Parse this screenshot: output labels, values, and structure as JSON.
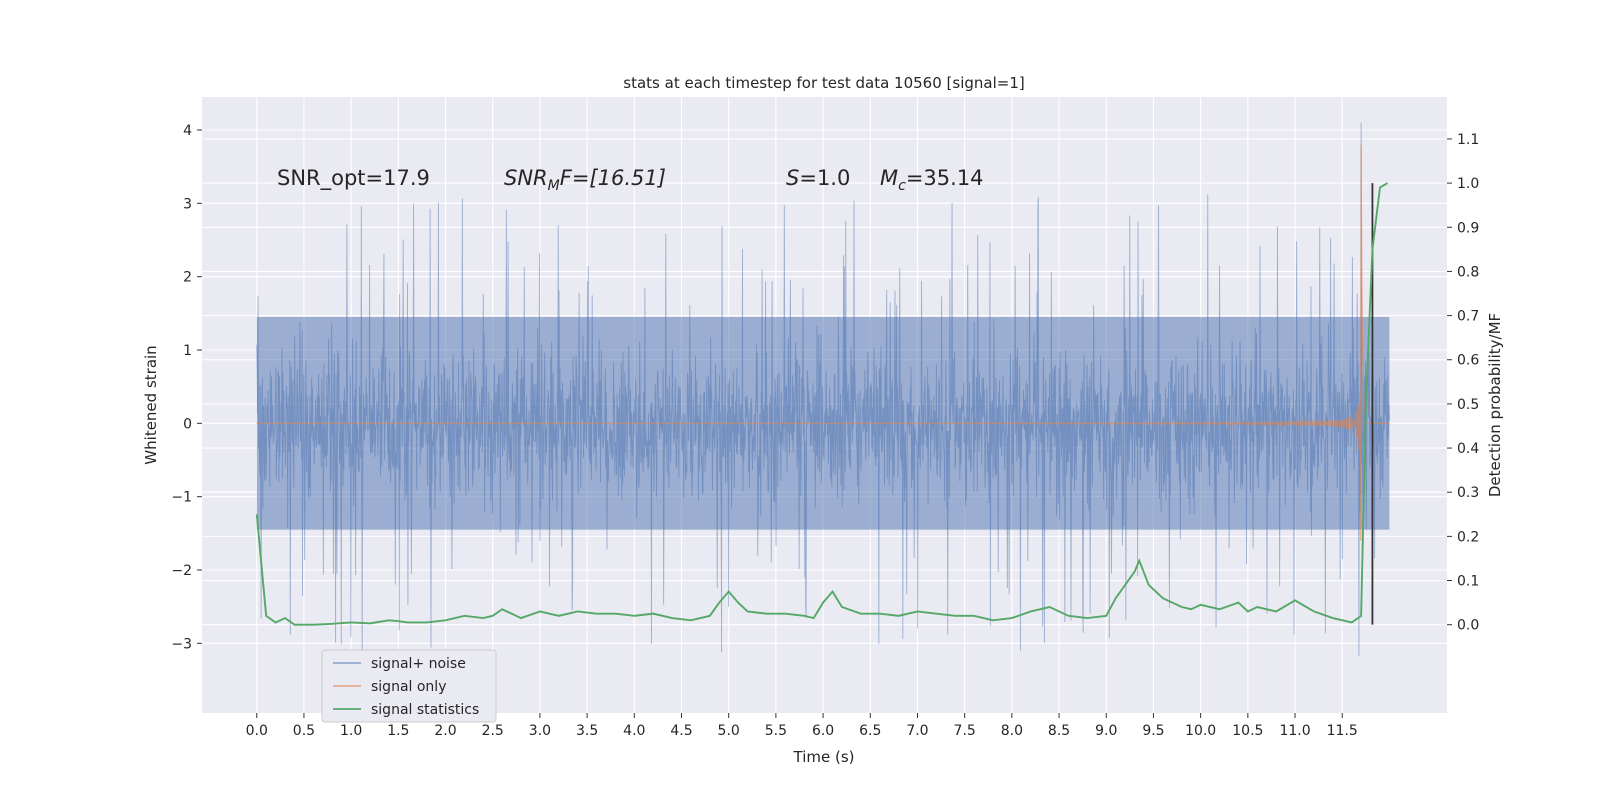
{
  "chart_data": {
    "type": "line",
    "title": "stats at each timestep for test data 10560 [signal=1]",
    "xlabel": "Time (s)",
    "ylabel_left": "Whitened strain",
    "ylabel_right": "Detection probability/MF",
    "xlim": [
      -0.58,
      12.61
    ],
    "ylim_left": [
      -3.95,
      4.45
    ],
    "ylim_right": [
      -0.2,
      1.195
    ],
    "x_ticks": [
      "0.0",
      "0.5",
      "1.0",
      "1.5",
      "2.0",
      "2.5",
      "3.0",
      "3.5",
      "4.0",
      "4.5",
      "5.0",
      "5.5",
      "6.0",
      "6.5",
      "7.0",
      "7.5",
      "8.0",
      "8.5",
      "9.0",
      "9.5",
      "10.0",
      "10.5",
      "11.0",
      "11.5"
    ],
    "y_ticks_left": [
      "−3",
      "−2",
      "−1",
      "0",
      "1",
      "2",
      "3",
      "4"
    ],
    "y_ticks_right": [
      "0.0",
      "0.1",
      "0.2",
      "0.3",
      "0.4",
      "0.5",
      "0.6",
      "0.7",
      "0.8",
      "0.9",
      "1.0",
      "1.1"
    ],
    "annotations": {
      "snr_opt": "SNR_opt=17.9",
      "snr_mf_sym": "SNR",
      "snr_mf_sub": "M",
      "snr_mf_rest": "F=[16.51]",
      "s_sym": "S",
      "s_val": "=1.0",
      "mc_sym": "M",
      "mc_sub": "c",
      "mc_val": "=35.14"
    },
    "legend": {
      "position": "lower-left",
      "entries": [
        "signal+ noise",
        "signal only",
        "signal statistics"
      ]
    },
    "series": [
      {
        "name": "signal+ noise",
        "axis": "left",
        "color": "#4c72b0",
        "alpha": 0.5,
        "x_range": [
          0.0,
          12.0
        ],
        "band": 1.45,
        "noise_std": 0.9,
        "spike_max": 4.1
      },
      {
        "name": "signal only",
        "axis": "left",
        "color": "#dd8452",
        "alpha": 0.6,
        "x_range": [
          0.0,
          12.0
        ],
        "chirp_merger_t": 11.7,
        "peak": 3.8
      },
      {
        "name": "signal statistics",
        "axis": "right",
        "color": "#55a868",
        "x": [
          0.0,
          0.1,
          0.2,
          0.3,
          0.4,
          0.5,
          0.6,
          0.8,
          1.0,
          1.2,
          1.4,
          1.5,
          1.6,
          1.8,
          2.0,
          2.2,
          2.4,
          2.5,
          2.6,
          2.8,
          3.0,
          3.2,
          3.4,
          3.6,
          3.8,
          4.0,
          4.2,
          4.4,
          4.6,
          4.8,
          4.9,
          5.0,
          5.1,
          5.2,
          5.4,
          5.6,
          5.8,
          5.9,
          6.0,
          6.1,
          6.2,
          6.4,
          6.6,
          6.8,
          7.0,
          7.2,
          7.4,
          7.6,
          7.8,
          8.0,
          8.2,
          8.4,
          8.6,
          8.8,
          9.0,
          9.1,
          9.2,
          9.3,
          9.35,
          9.45,
          9.6,
          9.8,
          9.9,
          10.0,
          10.2,
          10.4,
          10.5,
          10.6,
          10.8,
          11.0,
          11.2,
          11.4,
          11.6,
          11.7,
          11.75,
          11.82,
          11.9,
          11.98
        ],
        "values": [
          0.25,
          0.02,
          0.005,
          0.015,
          0.0,
          0.0,
          0.0,
          0.002,
          0.005,
          0.003,
          0.01,
          0.008,
          0.005,
          0.005,
          0.01,
          0.02,
          0.015,
          0.02,
          0.035,
          0.015,
          0.03,
          0.02,
          0.03,
          0.025,
          0.025,
          0.02,
          0.025,
          0.015,
          0.01,
          0.02,
          0.05,
          0.075,
          0.05,
          0.03,
          0.025,
          0.025,
          0.02,
          0.015,
          0.05,
          0.075,
          0.04,
          0.025,
          0.025,
          0.02,
          0.03,
          0.025,
          0.02,
          0.02,
          0.01,
          0.015,
          0.03,
          0.04,
          0.02,
          0.015,
          0.02,
          0.06,
          0.09,
          0.12,
          0.145,
          0.09,
          0.06,
          0.04,
          0.035,
          0.045,
          0.035,
          0.05,
          0.03,
          0.04,
          0.03,
          0.055,
          0.03,
          0.015,
          0.005,
          0.02,
          0.5,
          0.85,
          0.99,
          1.0
        ]
      }
    ],
    "vertical_marker": {
      "x": 11.82,
      "y_low": 0.0,
      "y_high": 1.0,
      "color": "#333333"
    }
  }
}
